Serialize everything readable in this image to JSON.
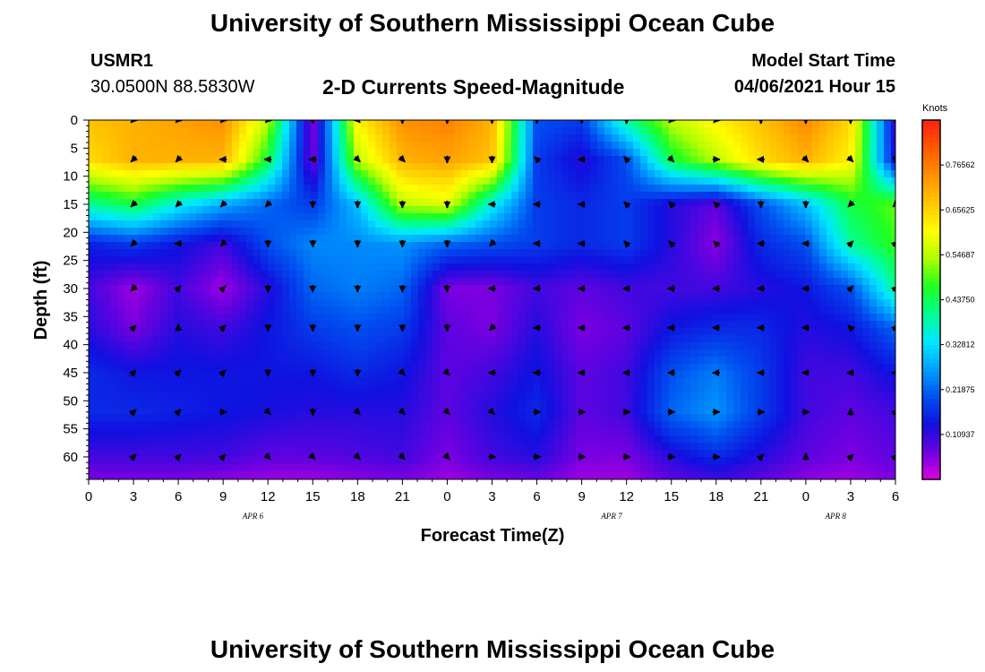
{
  "header": {
    "title": "University of Southern Mississippi Ocean Cube",
    "station_id": "USMR1",
    "station_coords": "30.0500N  88.5830W",
    "subtitle": "2-D Currents Speed-Magnitude",
    "model_start_label": "Model Start Time",
    "model_start_value": "04/06/2021 Hour 15"
  },
  "footer": {
    "title": "University of Southern Mississippi Ocean Cube"
  },
  "colors": {
    "scale": [
      "#e000e0",
      "#7000e0",
      "#1010e0",
      "#0050f0",
      "#00a0ff",
      "#00e8ff",
      "#00ff90",
      "#20ff20",
      "#b0ff00",
      "#ffff00",
      "#ffc800",
      "#ff9000",
      "#ff5a00",
      "#ff2010"
    ],
    "arrow": "#000000"
  },
  "chart_data": {
    "type": "heatmap",
    "title": "2-D Currents Speed-Magnitude",
    "xlabel": "Forecast Time(Z)",
    "ylabel": "Depth (ft)",
    "x_ticks": [
      "0",
      "3",
      "6",
      "9",
      "12",
      "15",
      "18",
      "21",
      "0",
      "3",
      "6",
      "9",
      "12",
      "15",
      "18",
      "21",
      "0",
      "3",
      "6"
    ],
    "x_tick_hours": [
      0,
      3,
      6,
      9,
      12,
      15,
      18,
      21,
      24,
      27,
      30,
      33,
      36,
      39,
      42,
      45,
      48,
      51,
      54
    ],
    "date_labels": [
      {
        "label": "APR 6",
        "hour": 11
      },
      {
        "label": "APR 7",
        "hour": 35
      },
      {
        "label": "APR 8",
        "hour": 50
      }
    ],
    "xlim": [
      0,
      54
    ],
    "y_ticks": [
      "0",
      "5",
      "10",
      "15",
      "20",
      "25",
      "30",
      "35",
      "40",
      "45",
      "50",
      "55",
      "60"
    ],
    "y_tick_values": [
      0,
      5,
      10,
      15,
      20,
      25,
      30,
      35,
      40,
      45,
      50,
      55,
      60
    ],
    "ylim": [
      0,
      64
    ],
    "y_inverted": true,
    "colorbar": {
      "unit": "Knots",
      "min": 0,
      "max": 0.875,
      "tick_labels": [
        "0.76562",
        "0.65625",
        "0.54687",
        "0.43750",
        "0.32812",
        "0.21875",
        "0.10937"
      ],
      "tick_values": [
        0.76562,
        0.65625,
        0.54687,
        0.4375,
        0.32812,
        0.21875,
        0.10937
      ]
    },
    "speed_field": {
      "grid_hours": [
        0,
        3,
        6,
        9,
        12,
        15,
        18,
        21,
        24,
        27,
        30,
        33,
        36,
        39,
        42,
        45,
        48,
        51,
        54
      ],
      "grid_depths": [
        0,
        7,
        15,
        22,
        30,
        37,
        45,
        52,
        60,
        64
      ],
      "values": [
        [
          0.68,
          0.7,
          0.72,
          0.74,
          0.55,
          0.05,
          0.62,
          0.74,
          0.76,
          0.7,
          0.2,
          0.18,
          0.4,
          0.55,
          0.62,
          0.68,
          0.75,
          0.65,
          0.1
        ],
        [
          0.65,
          0.7,
          0.7,
          0.7,
          0.45,
          0.06,
          0.55,
          0.7,
          0.72,
          0.68,
          0.18,
          0.12,
          0.2,
          0.45,
          0.55,
          0.65,
          0.7,
          0.62,
          0.12
        ],
        [
          0.4,
          0.45,
          0.35,
          0.28,
          0.22,
          0.18,
          0.3,
          0.55,
          0.58,
          0.35,
          0.18,
          0.16,
          0.18,
          0.12,
          0.08,
          0.2,
          0.3,
          0.45,
          0.5
        ],
        [
          0.15,
          0.18,
          0.14,
          0.1,
          0.2,
          0.25,
          0.25,
          0.26,
          0.22,
          0.2,
          0.18,
          0.16,
          0.18,
          0.12,
          0.05,
          0.16,
          0.2,
          0.4,
          0.48
        ],
        [
          0.1,
          0.04,
          0.1,
          0.04,
          0.12,
          0.22,
          0.24,
          0.22,
          0.06,
          0.06,
          0.1,
          0.08,
          0.1,
          0.1,
          0.1,
          0.12,
          0.14,
          0.2,
          0.4
        ],
        [
          0.12,
          0.06,
          0.12,
          0.1,
          0.14,
          0.18,
          0.2,
          0.18,
          0.08,
          0.06,
          0.12,
          0.06,
          0.08,
          0.14,
          0.16,
          0.16,
          0.12,
          0.14,
          0.22
        ],
        [
          0.16,
          0.14,
          0.14,
          0.14,
          0.14,
          0.14,
          0.16,
          0.14,
          0.08,
          0.1,
          0.14,
          0.08,
          0.1,
          0.2,
          0.24,
          0.18,
          0.1,
          0.1,
          0.14
        ],
        [
          0.16,
          0.16,
          0.15,
          0.14,
          0.13,
          0.12,
          0.12,
          0.12,
          0.08,
          0.12,
          0.16,
          0.08,
          0.1,
          0.22,
          0.26,
          0.18,
          0.1,
          0.08,
          0.1
        ],
        [
          0.1,
          0.1,
          0.1,
          0.1,
          0.08,
          0.08,
          0.09,
          0.1,
          0.06,
          0.1,
          0.12,
          0.06,
          0.06,
          0.12,
          0.16,
          0.12,
          0.08,
          0.06,
          0.08
        ],
        [
          0.06,
          0.06,
          0.06,
          0.05,
          0.04,
          0.04,
          0.05,
          0.06,
          0.04,
          0.06,
          0.07,
          0.04,
          0.04,
          0.08,
          0.1,
          0.08,
          0.05,
          0.04,
          0.06
        ]
      ]
    },
    "vectors": {
      "hours": [
        3,
        6,
        9,
        12,
        15,
        18,
        21,
        24,
        27,
        30,
        33,
        36,
        39,
        42,
        45,
        48,
        51,
        54
      ],
      "depths": [
        0,
        7,
        15,
        22,
        30,
        37,
        45,
        52,
        60
      ],
      "angles_deg": [
        [
          135,
          135,
          135,
          135,
          90,
          45,
          90,
          90,
          90,
          90,
          90,
          90,
          135,
          135,
          90,
          90,
          90,
          90
        ],
        [
          135,
          135,
          180,
          180,
          180,
          45,
          45,
          90,
          90,
          225,
          180,
          225,
          45,
          0,
          180,
          45,
          45,
          90
        ],
        [
          135,
          135,
          135,
          135,
          90,
          90,
          90,
          90,
          180,
          180,
          180,
          225,
          225,
          225,
          90,
          90,
          135,
          135
        ],
        [
          135,
          180,
          135,
          90,
          90,
          90,
          90,
          90,
          135,
          180,
          180,
          225,
          225,
          225,
          180,
          180,
          315,
          315
        ],
        [
          135,
          315,
          315,
          90,
          90,
          90,
          90,
          90,
          180,
          180,
          180,
          180,
          180,
          180,
          180,
          180,
          315,
          315
        ],
        [
          315,
          270,
          315,
          90,
          90,
          90,
          90,
          90,
          135,
          180,
          180,
          180,
          180,
          180,
          180,
          180,
          225,
          315
        ],
        [
          315,
          315,
          315,
          90,
          90,
          90,
          45,
          45,
          180,
          180,
          180,
          180,
          180,
          180,
          180,
          180,
          180,
          180
        ],
        [
          315,
          315,
          0,
          45,
          90,
          45,
          45,
          45,
          45,
          0,
          0,
          0,
          0,
          0,
          0,
          0,
          270,
          315
        ],
        [
          315,
          315,
          315,
          45,
          45,
          45,
          45,
          45,
          0,
          0,
          0,
          0,
          0,
          0,
          315,
          270,
          315,
          315
        ]
      ]
    }
  }
}
